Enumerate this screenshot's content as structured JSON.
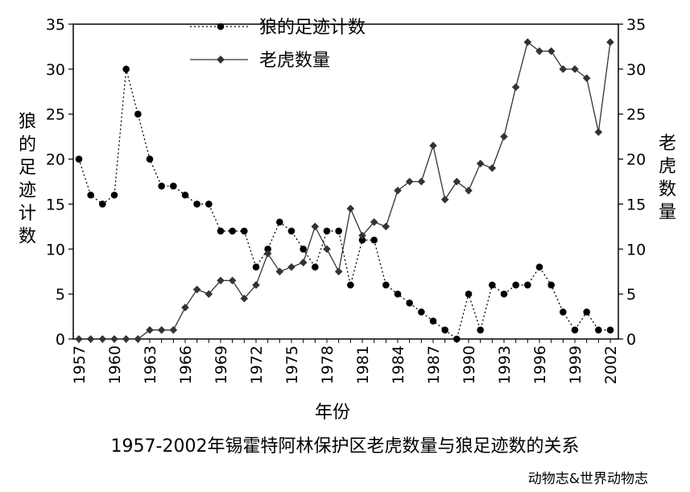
{
  "chart_data": {
    "type": "line",
    "x": [
      1957,
      1958,
      1959,
      1960,
      1961,
      1962,
      1963,
      1964,
      1965,
      1966,
      1967,
      1968,
      1969,
      1970,
      1971,
      1972,
      1973,
      1974,
      1975,
      1976,
      1977,
      1978,
      1979,
      1980,
      1981,
      1982,
      1983,
      1984,
      1985,
      1986,
      1987,
      1988,
      1989,
      1990,
      1991,
      1992,
      1993,
      1994,
      1995,
      1996,
      1997,
      1998,
      1999,
      2000,
      2001,
      2002
    ],
    "x_ticks": [
      "1957",
      "1960",
      "1963",
      "1966",
      "1969",
      "1972",
      "1975",
      "1978",
      "1981",
      "1984",
      "1987",
      "1990",
      "1993",
      "1996",
      "1999",
      "2002"
    ],
    "xlabel": "年份",
    "ylabel_left": "狼的足迹计数",
    "ylabel_right": "老虎数量",
    "ylim_left": [
      0,
      35
    ],
    "ylim_right": [
      0,
      35
    ],
    "y_ticks": [
      "0",
      "5",
      "10",
      "15",
      "20",
      "25",
      "30",
      "35"
    ],
    "legend_position": "top-center",
    "grid": false,
    "series": [
      {
        "name": "狼的足迹计数",
        "axis": "left",
        "style": "dotted",
        "marker": "circle",
        "values": [
          20,
          16,
          15,
          16,
          30,
          25,
          20,
          17,
          17,
          16,
          15,
          15,
          12,
          12,
          12,
          8,
          10,
          13,
          12,
          10,
          8,
          12,
          12,
          6,
          11,
          11,
          6,
          5,
          4,
          3,
          2,
          1,
          0,
          5,
          1,
          6,
          5,
          6,
          6,
          8,
          6,
          3,
          1,
          3,
          1,
          1
        ]
      },
      {
        "name": "老虎数量",
        "axis": "right",
        "style": "solid",
        "marker": "diamond",
        "values": [
          0,
          0,
          0,
          0,
          0,
          0,
          1,
          1,
          1,
          3.5,
          5.5,
          5,
          6.5,
          6.5,
          4.5,
          6,
          9.5,
          7.5,
          8,
          8.5,
          12.5,
          10,
          7.5,
          14.5,
          11.5,
          13,
          12.5,
          16.5,
          17.5,
          17.5,
          21.5,
          15.5,
          17.5,
          16.5,
          19.5,
          19,
          22.5,
          28,
          33,
          32,
          32,
          30,
          30,
          29,
          23,
          33
        ]
      }
    ]
  },
  "caption": "1957-2002年锡霍特阿林保护区老虎数量与狼足迹数的关系",
  "credit": "动物志&世界动物志"
}
